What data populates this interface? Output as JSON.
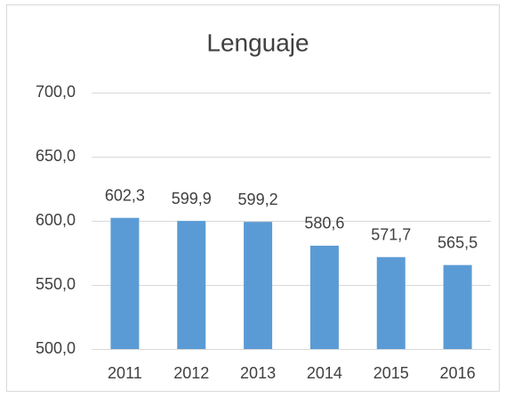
{
  "chart_data": {
    "type": "bar",
    "title": "Lenguaje",
    "categories": [
      "2011",
      "2012",
      "2013",
      "2014",
      "2015",
      "2016"
    ],
    "values": [
      602.3,
      599.9,
      599.2,
      580.6,
      571.7,
      565.5
    ],
    "value_labels": [
      "602,3",
      "599,9",
      "599,2",
      "580,6",
      "571,7",
      "565,5"
    ],
    "color": "#5b9bd5",
    "ylim": [
      500,
      700
    ],
    "yticks": [
      {
        "value": 500,
        "label": "500,0"
      },
      {
        "value": 550,
        "label": "550,0"
      },
      {
        "value": 600,
        "label": "600,0"
      },
      {
        "value": 650,
        "label": "650,0"
      },
      {
        "value": 700,
        "label": "700,0"
      }
    ],
    "grid": true
  }
}
